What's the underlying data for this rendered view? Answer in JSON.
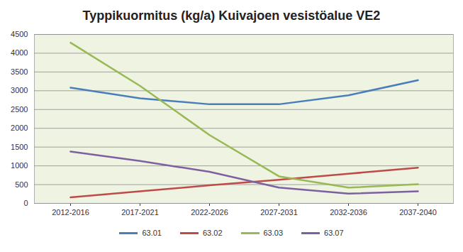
{
  "chart_data": {
    "type": "line",
    "title": "Typpikuormitus (kg/a) Kuivajoen vesistöalue VE2",
    "categories": [
      "2012-2016",
      "2017-2021",
      "2022-2026",
      "2027-2031",
      "2032-2036",
      "2037-2040"
    ],
    "series": [
      {
        "name": "63.01",
        "color": "#4a7ebb",
        "values": [
          3080,
          2800,
          2640,
          2640,
          2880,
          3280
        ]
      },
      {
        "name": "63.02",
        "color": "#be4b48",
        "values": [
          160,
          320,
          480,
          630,
          790,
          950
        ]
      },
      {
        "name": "63.03",
        "color": "#98b954",
        "values": [
          4280,
          3130,
          1820,
          720,
          420,
          510
        ]
      },
      {
        "name": "63.07",
        "color": "#7d60a0",
        "values": [
          1380,
          1130,
          840,
          420,
          260,
          320
        ]
      }
    ],
    "ylim": [
      0,
      4500
    ],
    "yticks": [
      0,
      500,
      1000,
      1500,
      2000,
      2500,
      3000,
      3500,
      4000,
      4500
    ],
    "grid": true,
    "legend": "bottom"
  }
}
